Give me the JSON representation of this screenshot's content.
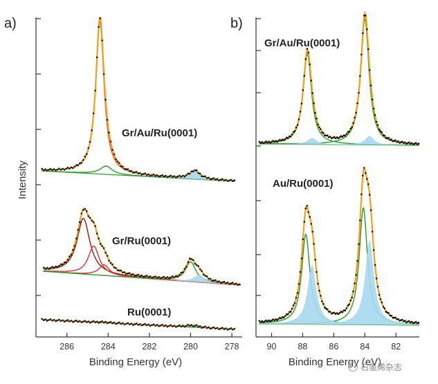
{
  "watermark": "石墨烯杂志",
  "chart_data": [
    {
      "panel": "a)",
      "type": "line",
      "xlabel": "Binding Energy (eV)",
      "ylabel": "Intensity",
      "xlim": [
        287.5,
        277.5
      ],
      "x_reversed": true,
      "x_ticks": [
        286,
        284,
        282,
        280,
        278
      ],
      "spectra": [
        {
          "label": "Gr/Au/Ru(0001)",
          "components": [
            {
              "color": "#e8542f",
              "center": 284.4,
              "height": 1.0,
              "width": 0.24
            },
            {
              "color": "#2a9a2a",
              "center": 284.1,
              "height": 0.055,
              "width": 0.35
            },
            {
              "color": "#a6d8ee",
              "center": 279.8,
              "height": 0.055,
              "width": 0.3,
              "filled": true
            }
          ],
          "fit_color": "#f0a020",
          "data_color": "#111111"
        },
        {
          "label": "Gr/Ru(0001)",
          "components": [
            {
              "color": "#8b1a1a",
              "center": 285.2,
              "height": 0.62,
              "width": 0.38
            },
            {
              "color": "#e03030",
              "center": 284.7,
              "height": 0.32,
              "width": 0.32
            },
            {
              "color": "#e03030",
              "center": 284.2,
              "height": 0.12,
              "width": 0.3
            },
            {
              "color": "#2a9a2a",
              "center": 280.0,
              "height": 0.22,
              "width": 0.3
            },
            {
              "color": "#a6d8ee",
              "center": 279.6,
              "height": 0.08,
              "width": 0.3,
              "filled": true
            }
          ],
          "fit_color": "#f0a020",
          "data_color": "#111111"
        },
        {
          "label": "Ru(0001)",
          "components": [
            {
              "color": "#2a9a2a",
              "center": 284.2,
              "height": 0.05,
              "width": 0.5
            },
            {
              "color": "#2a9a2a",
              "center": 280.0,
              "height": 0.11,
              "width": 0.3
            },
            {
              "color": "#a6d8ee",
              "center": 279.7,
              "height": 0.06,
              "width": 0.3,
              "filled": true
            }
          ],
          "fit_color": "#f0a020",
          "data_color": "#111111"
        }
      ]
    },
    {
      "panel": "b)",
      "type": "line",
      "xlabel": "Binding Energy (eV)",
      "ylabel": "",
      "xlim": [
        91,
        80.5
      ],
      "x_reversed": true,
      "x_ticks": [
        90,
        88,
        86,
        84,
        82
      ],
      "spectra": [
        {
          "label": "Gr/Au/Ru(0001)",
          "components": [
            {
              "color": "#2a9a2a",
              "center": 87.7,
              "height": 0.72,
              "width": 0.32
            },
            {
              "color": "#2a9a2a",
              "center": 84.0,
              "height": 1.0,
              "width": 0.32
            },
            {
              "color": "#a6d8ee",
              "center": 87.4,
              "height": 0.05,
              "width": 0.35,
              "filled": true
            },
            {
              "color": "#a6d8ee",
              "center": 83.7,
              "height": 0.07,
              "width": 0.35,
              "filled": true
            }
          ],
          "fit_color": "#f0a020",
          "data_color": "#111111"
        },
        {
          "label": "Au/Ru(0001)",
          "components": [
            {
              "color": "#2a9a2a",
              "center": 87.8,
              "height": 0.5,
              "width": 0.32
            },
            {
              "color": "#2a9a2a",
              "center": 84.1,
              "height": 0.65,
              "width": 0.32
            },
            {
              "color": "#a6d8ee",
              "center": 87.4,
              "height": 0.33,
              "width": 0.34,
              "filled": true
            },
            {
              "color": "#a6d8ee",
              "center": 83.7,
              "height": 0.47,
              "width": 0.34,
              "filled": true
            }
          ],
          "fit_color": "#f0a020",
          "data_color": "#111111"
        }
      ]
    }
  ]
}
